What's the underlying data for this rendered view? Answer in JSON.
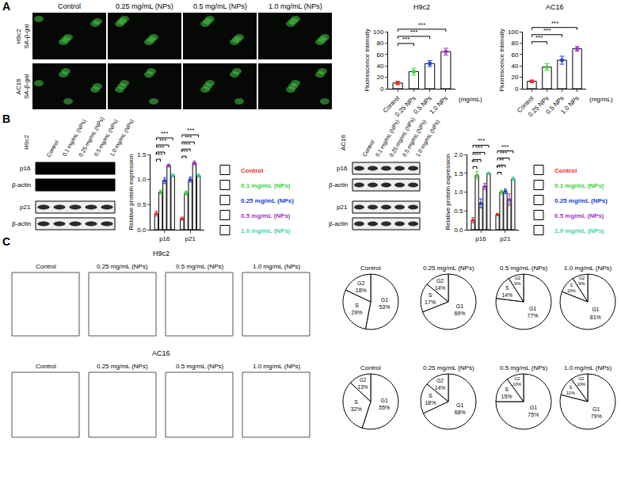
{
  "figure": {
    "panel_labels": [
      "A",
      "B",
      "C"
    ],
    "micrographs": {
      "columns": [
        "Control",
        "0.25 mg/mL (NPs)",
        "0.5 mg/mL (NPs)",
        "1.0 mg/mL (NPs)"
      ],
      "rows": [
        [
          "H9c2",
          "SA-β-gal"
        ],
        [
          "AC16",
          "SA-β-gal"
        ]
      ]
    },
    "blots": [
      {
        "cell": "H9c2",
        "lanes": [
          "Control",
          "0.1 mg/mL (NPs)",
          "0.25 mg/mL (NPs)",
          "0.5 mg/mL (NPs)",
          "1.0 mg/mL (NPs)"
        ],
        "rows": [
          "p16",
          "β-actin",
          "p21",
          "β-actin"
        ]
      },
      {
        "cell": "AC16",
        "lanes": [
          "Control",
          "0.1 mg/mL (NPs)",
          "0.25 mg/mL (NPs)",
          "0.5 mg/mL (NPs)",
          "1.0 mg/mL (NPs)"
        ],
        "rows": [
          "p16",
          "β-actin",
          "p21",
          "β-actin"
        ]
      }
    ],
    "flow": [
      {
        "cell": "H9c2",
        "panels": [
          "Control",
          "0.25 mg/mL (NPs)",
          "0.5 mg/mL (NPs)",
          "1.0 mg/mL (NPs)"
        ]
      },
      {
        "cell": "AC16",
        "panels": [
          "Control",
          "0.25 mg/mL (NPs)",
          "0.5 mg/mL (NPs)",
          "1.0 mg/mL (NPs)"
        ]
      }
    ]
  },
  "chart_data": [
    {
      "type": "bar",
      "title": "H9c2",
      "categories": [
        "Control",
        "0.25 NPs",
        "0.5 NPs",
        "1.0 NPs"
      ],
      "values": [
        10,
        30,
        44,
        65
      ],
      "errors": [
        3,
        6,
        5,
        6
      ],
      "colors": [
        "#e8312a",
        "#3dd13d",
        "#2140d8",
        "#a035c8"
      ],
      "ylabel": "Fluorescence intensity",
      "xlabel": "(mg/mL)",
      "ylim": [
        0,
        100
      ],
      "yticks": [
        0,
        20,
        40,
        60,
        80,
        100
      ],
      "grid": false,
      "significance": [
        {
          "from": 0,
          "to": 1,
          "text": "***"
        },
        {
          "from": 0,
          "to": 2,
          "text": "***"
        },
        {
          "from": 0,
          "to": 3,
          "text": "***"
        }
      ]
    },
    {
      "type": "bar",
      "title": "AC16",
      "categories": [
        "Control",
        "0.25 NPs",
        "0.5 NPs",
        "1.0 NPs"
      ],
      "values": [
        13,
        38,
        50,
        70
      ],
      "errors": [
        2,
        6,
        7,
        4
      ],
      "colors": [
        "#e8312a",
        "#3dd13d",
        "#2140d8",
        "#a035c8"
      ],
      "ylabel": "Fluorescence intensity",
      "xlabel": "(mg/mL)",
      "ylim": [
        0,
        100
      ],
      "yticks": [
        0,
        20,
        40,
        60,
        80,
        100
      ],
      "grid": false,
      "significance": [
        {
          "from": 0,
          "to": 1,
          "text": "***"
        },
        {
          "from": 0,
          "to": 2,
          "text": "***"
        },
        {
          "from": 0,
          "to": 3,
          "text": "***"
        }
      ]
    },
    {
      "type": "bar",
      "categories": [
        "p16",
        "p21"
      ],
      "ylabel": "Relative protein expression",
      "ylim": [
        0,
        1.5
      ],
      "yticks": [
        {
          "value": 0,
          "label": "0.0"
        },
        {
          "value": 0.5,
          "label": "0.5"
        },
        {
          "value": 1,
          "label": "1.0"
        },
        {
          "value": 1.5,
          "label": "1.5"
        }
      ],
      "grid": false,
      "series": [
        {
          "name": "Control",
          "color": "#e8312a",
          "values": [
            0.32,
            0.22
          ],
          "errors": [
            0.05,
            0.03
          ]
        },
        {
          "name": "0.1 mg/mL (NPs)",
          "color": "#3dd13d",
          "values": [
            0.75,
            0.73
          ],
          "errors": [
            0.04,
            0.04
          ]
        },
        {
          "name": "0.25 mg/mL (NPs)",
          "color": "#2140d8",
          "values": [
            0.98,
            1.0
          ],
          "errors": [
            0.06,
            0.05
          ]
        },
        {
          "name": "0.5 mg/mL (NPs)",
          "color": "#a035c8",
          "values": [
            1.28,
            1.33
          ],
          "errors": [
            0.03,
            0.04
          ]
        },
        {
          "name": "1.0 mg/mL (NPs)",
          "color": "#3fd1b0",
          "values": [
            1.08,
            1.08
          ],
          "errors": [
            0.03,
            0.03
          ]
        }
      ],
      "significance": [
        {
          "category": 0,
          "from": 0,
          "to": 1,
          "text": "***"
        },
        {
          "category": 0,
          "from": 0,
          "to": 2,
          "text": "***"
        },
        {
          "category": 0,
          "from": 0,
          "to": 3,
          "text": "***"
        },
        {
          "category": 0,
          "from": 0,
          "to": 4,
          "text": "***"
        },
        {
          "category": 1,
          "from": 0,
          "to": 1,
          "text": "***"
        },
        {
          "category": 1,
          "from": 0,
          "to": 2,
          "text": "***"
        },
        {
          "category": 1,
          "from": 0,
          "to": 3,
          "text": "***"
        },
        {
          "category": 1,
          "from": 0,
          "to": 4,
          "text": "***"
        }
      ]
    },
    {
      "type": "bar",
      "categories": [
        "p16",
        "p21"
      ],
      "ylabel": "Relative protein expression",
      "ylim": [
        0,
        2
      ],
      "yticks": [
        {
          "value": 0,
          "label": "0.0"
        },
        {
          "value": 0.5,
          "label": "0.5"
        },
        {
          "value": 1,
          "label": "1.0"
        },
        {
          "value": 1.5,
          "label": "1.5"
        },
        {
          "value": 2,
          "label": "2.0"
        }
      ],
      "grid": false,
      "series": [
        {
          "name": "Control",
          "color": "#e8312a",
          "values": [
            0.25,
            0.4
          ],
          "errors": [
            0.07,
            0.03
          ]
        },
        {
          "name": "0.1 mg/mL (NPs)",
          "color": "#3dd13d",
          "values": [
            1.45,
            1.0
          ],
          "errors": [
            0.1,
            0.05
          ]
        },
        {
          "name": "0.25 mg/mL (NPs)",
          "color": "#2140d8",
          "values": [
            0.7,
            1.02
          ],
          "errors": [
            0.12,
            0.06
          ]
        },
        {
          "name": "0.5 mg/mL (NPs)",
          "color": "#a035c8",
          "values": [
            1.15,
            0.8
          ],
          "errors": [
            0.08,
            0.15
          ]
        },
        {
          "name": "1.0 mg/mL (NPs)",
          "color": "#3fd1b0",
          "values": [
            1.5,
            1.35
          ],
          "errors": [
            0.03,
            0.05
          ]
        }
      ],
      "significance": [
        {
          "category": 0,
          "from": 0,
          "to": 1,
          "text": "***"
        },
        {
          "category": 0,
          "from": 0,
          "to": 2,
          "text": "***"
        },
        {
          "category": 0,
          "from": 0,
          "to": 3,
          "text": "***"
        },
        {
          "category": 0,
          "from": 0,
          "to": 4,
          "text": "***"
        },
        {
          "category": 1,
          "from": 0,
          "to": 1,
          "text": "***"
        },
        {
          "category": 1,
          "from": 0,
          "to": 2,
          "text": "**"
        },
        {
          "category": 1,
          "from": 0,
          "to": 3,
          "text": "***"
        },
        {
          "category": 1,
          "from": 0,
          "to": 4,
          "text": "***"
        }
      ]
    },
    {
      "type": "pie",
      "title": "Control",
      "labels": [
        "G1",
        "S",
        "G2"
      ],
      "values": [
        53,
        29,
        18
      ],
      "value_labels": [
        "53%",
        "29%",
        "18%"
      ],
      "color": "#ffffff"
    },
    {
      "type": "pie",
      "title": "0.25 mg/mL (NPs)",
      "labels": [
        "G1",
        "S",
        "G2"
      ],
      "values": [
        69,
        17,
        14
      ],
      "value_labels": [
        "69%",
        "17%",
        "14%"
      ],
      "color": "#ffffff"
    },
    {
      "type": "pie",
      "title": "0.5 mg/mL (NPs)",
      "labels": [
        "G1",
        "S",
        "G2"
      ],
      "values": [
        77,
        14,
        9
      ],
      "value_labels": [
        "77%",
        "14%",
        "9%"
      ],
      "color": "#ffffff"
    },
    {
      "type": "pie",
      "title": "1.0 mg/mL (NPs)",
      "labels": [
        "G1",
        "S",
        "G2"
      ],
      "values": [
        81,
        10,
        9
      ],
      "value_labels": [
        "81%",
        "10%",
        "9%"
      ],
      "color": "#ffffff"
    },
    {
      "type": "pie",
      "title": "Control",
      "labels": [
        "G1",
        "S",
        "G2"
      ],
      "values": [
        55,
        32,
        13
      ],
      "value_labels": [
        "55%",
        "32%",
        "13%"
      ],
      "color": "#ffffff"
    },
    {
      "type": "pie",
      "title": "0.25 mg/mL (NPs)",
      "labels": [
        "G1",
        "S",
        "G2"
      ],
      "values": [
        68,
        18,
        14
      ],
      "value_labels": [
        "68%",
        "18%",
        "14%"
      ],
      "color": "#ffffff"
    },
    {
      "type": "pie",
      "title": "0.5 mg/mL (NPs)",
      "labels": [
        "G1",
        "S",
        "G2"
      ],
      "values": [
        75,
        15,
        10
      ],
      "value_labels": [
        "75%",
        "15%",
        "10%"
      ],
      "color": "#ffffff"
    },
    {
      "type": "pie",
      "title": "1.0 mg/mL (NPs)",
      "labels": [
        "G1",
        "S",
        "G2"
      ],
      "values": [
        79,
        11,
        10
      ],
      "value_labels": [
        "79%",
        "11%",
        "10%"
      ],
      "color": "#ffffff"
    }
  ]
}
